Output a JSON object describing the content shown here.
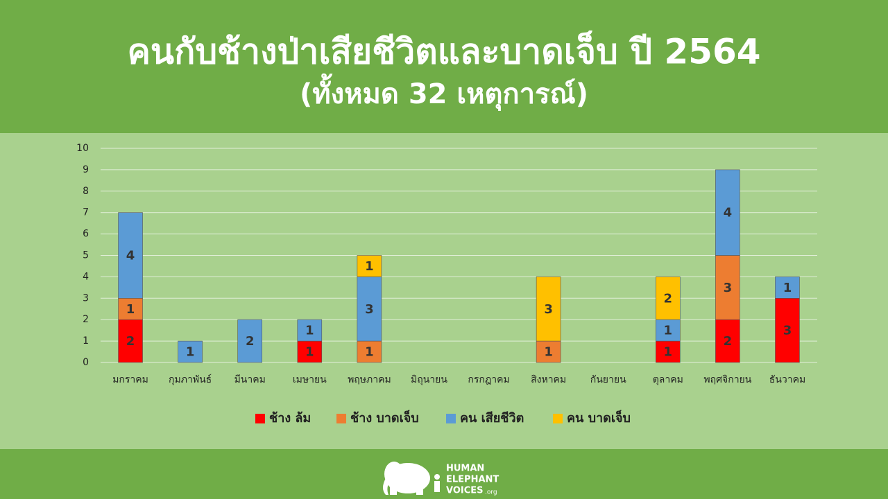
{
  "chart_data": {
    "type": "bar",
    "stacked": true,
    "title": "คนกับช้างป่าเสียชีวิตและบาดเจ็บ ปี 2564",
    "subtitle": "(ทั้งหมด 32 เหตุการณ์)",
    "categories": [
      "มกราคม",
      "กุมภาพันธ์",
      "มีนาคม",
      "เมษายน",
      "พฤษภาคม",
      "มิถุนายน",
      "กรกฎาคม",
      "สิงหาคม",
      "กันยายน",
      "ตุลาคม",
      "พฤศจิกายน",
      "ธันวาคม"
    ],
    "series": [
      {
        "name": "ช้าง ล้ม",
        "color": "#ff0000",
        "values": [
          2,
          null,
          null,
          1,
          null,
          null,
          null,
          null,
          null,
          1,
          2,
          3
        ]
      },
      {
        "name": "ช้าง บาดเจ็บ",
        "color": "#ed7d31",
        "values": [
          1,
          null,
          null,
          null,
          1,
          null,
          null,
          1,
          null,
          null,
          3,
          null
        ]
      },
      {
        "name": "คน เสียชีวิต",
        "color": "#5b9bd5",
        "values": [
          4,
          1,
          2,
          1,
          3,
          null,
          null,
          null,
          null,
          1,
          4,
          1
        ]
      },
      {
        "name": "คน บาดเจ็บ",
        "color": "#ffc000",
        "values": [
          null,
          null,
          null,
          null,
          1,
          null,
          null,
          3,
          null,
          2,
          null,
          null
        ]
      }
    ],
    "ylim": [
      0,
      10
    ],
    "yticks": [
      0,
      1,
      2,
      3,
      4,
      5,
      6,
      7,
      8,
      9,
      10
    ],
    "grid": true,
    "legend": "bottom"
  },
  "footer": {
    "logo_line1": "HUMAN",
    "logo_line2": "ELEPHANT",
    "logo_line3": "VOICES",
    "logo_suffix": ".org"
  }
}
